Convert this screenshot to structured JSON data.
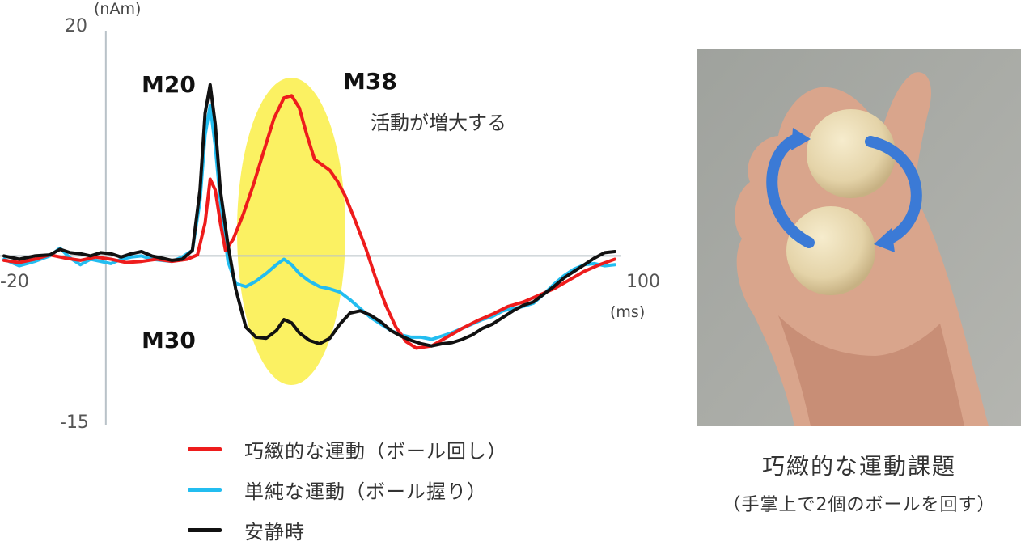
{
  "chart_data": {
    "type": "line",
    "y_unit": "(nAm)",
    "x_unit": "(ms)",
    "xlim": [
      -20,
      100
    ],
    "ylim": [
      -15,
      20
    ],
    "x_tick_labels": [
      "-20",
      "100"
    ],
    "y_tick_labels": [
      "20",
      "-15"
    ],
    "peak_labels": [
      "M20",
      "M30",
      "M38"
    ],
    "highlight_note": "活動が増大する",
    "series": [
      {
        "name": "巧緻的な運動（ボール回し）",
        "color": "#ee1c1c",
        "points": [
          [
            -20,
            -0.4
          ],
          [
            -17,
            -0.6
          ],
          [
            -14,
            -0.3
          ],
          [
            -11,
            0.1
          ],
          [
            -8,
            -0.2
          ],
          [
            -5,
            -0.4
          ],
          [
            -2,
            -0.1
          ],
          [
            1,
            -0.3
          ],
          [
            4,
            -0.6
          ],
          [
            7,
            -0.5
          ],
          [
            10,
            -0.3
          ],
          [
            13,
            -0.5
          ],
          [
            16,
            -0.3
          ],
          [
            18,
            0.1
          ],
          [
            19.5,
            3
          ],
          [
            20.5,
            7
          ],
          [
            21.5,
            6
          ],
          [
            22.5,
            3
          ],
          [
            23.5,
            0.5
          ],
          [
            25,
            1.5
          ],
          [
            27,
            3.8
          ],
          [
            29,
            6.5
          ],
          [
            31,
            9.5
          ],
          [
            33,
            12.5
          ],
          [
            35,
            14.4
          ],
          [
            36.5,
            14.6
          ],
          [
            38,
            13.5
          ],
          [
            39.5,
            11
          ],
          [
            41,
            8.8
          ],
          [
            42.5,
            8.3
          ],
          [
            44,
            7.8
          ],
          [
            45.5,
            6.8
          ],
          [
            47,
            5.5
          ],
          [
            49,
            3.2
          ],
          [
            51,
            0.8
          ],
          [
            53,
            -2
          ],
          [
            55,
            -4.5
          ],
          [
            57,
            -6.5
          ],
          [
            59,
            -7.8
          ],
          [
            61,
            -8.4
          ],
          [
            64,
            -8.2
          ],
          [
            67,
            -7.4
          ],
          [
            70,
            -6.6
          ],
          [
            73,
            -5.9
          ],
          [
            76,
            -5.3
          ],
          [
            79,
            -4.6
          ],
          [
            82,
            -4.2
          ],
          [
            85,
            -3.6
          ],
          [
            88,
            -3
          ],
          [
            91,
            -2.2
          ],
          [
            94,
            -1.4
          ],
          [
            97,
            -0.8
          ],
          [
            100,
            -0.3
          ]
        ]
      },
      {
        "name": "単純な運動（ボール握り）",
        "color": "#23bdf0",
        "points": [
          [
            -20,
            -0.3
          ],
          [
            -17,
            -0.9
          ],
          [
            -14,
            -0.5
          ],
          [
            -11,
            0
          ],
          [
            -9,
            0.7
          ],
          [
            -7,
            -0.2
          ],
          [
            -5,
            -0.8
          ],
          [
            -3,
            -0.3
          ],
          [
            -1,
            -0.5
          ],
          [
            1,
            -0.7
          ],
          [
            3,
            -0.3
          ],
          [
            5,
            -0.1
          ],
          [
            7,
            0
          ],
          [
            9,
            -0.3
          ],
          [
            11,
            -0.4
          ],
          [
            13,
            -0.5
          ],
          [
            15,
            -0.1
          ],
          [
            17,
            0.5
          ],
          [
            18.5,
            5
          ],
          [
            19.5,
            11
          ],
          [
            20.5,
            13.7
          ],
          [
            21.5,
            10
          ],
          [
            22.5,
            5
          ],
          [
            24,
            -0.5
          ],
          [
            25.5,
            -2.5
          ],
          [
            27.5,
            -2.8
          ],
          [
            29.5,
            -2.3
          ],
          [
            31.5,
            -1.6
          ],
          [
            33.5,
            -0.8
          ],
          [
            35,
            -0.3
          ],
          [
            36.5,
            -0.8
          ],
          [
            38,
            -1.6
          ],
          [
            40,
            -2.3
          ],
          [
            42,
            -2.8
          ],
          [
            44,
            -3
          ],
          [
            46,
            -3.3
          ],
          [
            48,
            -4
          ],
          [
            50,
            -4.8
          ],
          [
            52,
            -5.6
          ],
          [
            54,
            -6.2
          ],
          [
            56,
            -6.8
          ],
          [
            58,
            -7.2
          ],
          [
            60,
            -7.4
          ],
          [
            62,
            -7.4
          ],
          [
            64,
            -7.6
          ],
          [
            66,
            -7.3
          ],
          [
            68,
            -7
          ],
          [
            70,
            -6.6
          ],
          [
            72,
            -6.2
          ],
          [
            74,
            -5.8
          ],
          [
            76,
            -5.5
          ],
          [
            78,
            -5
          ],
          [
            80,
            -4.8
          ],
          [
            82,
            -4.6
          ],
          [
            84,
            -4.3
          ],
          [
            86,
            -3.5
          ],
          [
            88,
            -2.6
          ],
          [
            90,
            -1.8
          ],
          [
            92,
            -1.2
          ],
          [
            94,
            -0.8
          ],
          [
            96,
            -0.7
          ],
          [
            98,
            -0.9
          ],
          [
            100,
            -0.8
          ]
        ]
      },
      {
        "name": "安静時",
        "color": "#111111",
        "points": [
          [
            -20,
            0
          ],
          [
            -17,
            -0.3
          ],
          [
            -14,
            0
          ],
          [
            -11,
            0.1
          ],
          [
            -9,
            0.6
          ],
          [
            -7,
            0.3
          ],
          [
            -5,
            0.2
          ],
          [
            -3,
            0
          ],
          [
            -1,
            0.3
          ],
          [
            1,
            0.2
          ],
          [
            3,
            -0.1
          ],
          [
            5,
            0.2
          ],
          [
            7,
            0.4
          ],
          [
            9,
            0
          ],
          [
            11,
            -0.2
          ],
          [
            13,
            -0.4
          ],
          [
            15,
            -0.3
          ],
          [
            17,
            0.5
          ],
          [
            18.5,
            6
          ],
          [
            19.5,
            13
          ],
          [
            20.5,
            15.6
          ],
          [
            21.5,
            12
          ],
          [
            22.5,
            6
          ],
          [
            24,
            1
          ],
          [
            25.5,
            -3
          ],
          [
            27.5,
            -6.5
          ],
          [
            29.5,
            -7.4
          ],
          [
            31.5,
            -7.5
          ],
          [
            33.5,
            -6.8
          ],
          [
            35,
            -5.8
          ],
          [
            36.5,
            -6.1
          ],
          [
            38,
            -7
          ],
          [
            40,
            -7.7
          ],
          [
            42,
            -8
          ],
          [
            44,
            -7.5
          ],
          [
            46,
            -6.2
          ],
          [
            48,
            -5.2
          ],
          [
            50,
            -5
          ],
          [
            52,
            -5.4
          ],
          [
            54,
            -6
          ],
          [
            56,
            -6.8
          ],
          [
            58,
            -7.3
          ],
          [
            60,
            -7.7
          ],
          [
            62,
            -8
          ],
          [
            64,
            -8.2
          ],
          [
            66,
            -8
          ],
          [
            68,
            -7.9
          ],
          [
            70,
            -7.6
          ],
          [
            72,
            -7.2
          ],
          [
            74,
            -6.6
          ],
          [
            76,
            -6.2
          ],
          [
            78,
            -5.6
          ],
          [
            80,
            -5
          ],
          [
            82,
            -4.5
          ],
          [
            84,
            -4.2
          ],
          [
            86,
            -3.5
          ],
          [
            88,
            -2.8
          ],
          [
            90,
            -2
          ],
          [
            92,
            -1.4
          ],
          [
            94,
            -0.8
          ],
          [
            96,
            -0.2
          ],
          [
            98,
            0.3
          ],
          [
            100,
            0.4
          ]
        ]
      }
    ]
  },
  "photo_caption": {
    "title": "巧緻的な運動課題",
    "subtitle": "（手掌上で2個のボールを回す）"
  },
  "colors": {
    "highlight": "#fbf162",
    "axis": "#b9c2c8",
    "arrow": "#3b7ad6"
  }
}
